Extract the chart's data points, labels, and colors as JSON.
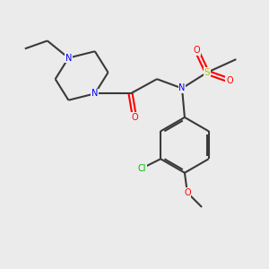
{
  "bg_color": "#ebebeb",
  "bond_color": "#3a3a3a",
  "N_color": "#0000ff",
  "O_color": "#ff0000",
  "S_color": "#bbbb00",
  "Cl_color": "#00bb00",
  "line_width": 1.5,
  "font_size": 7.0,
  "xlim": [
    0,
    10
  ],
  "ylim": [
    0,
    10
  ]
}
